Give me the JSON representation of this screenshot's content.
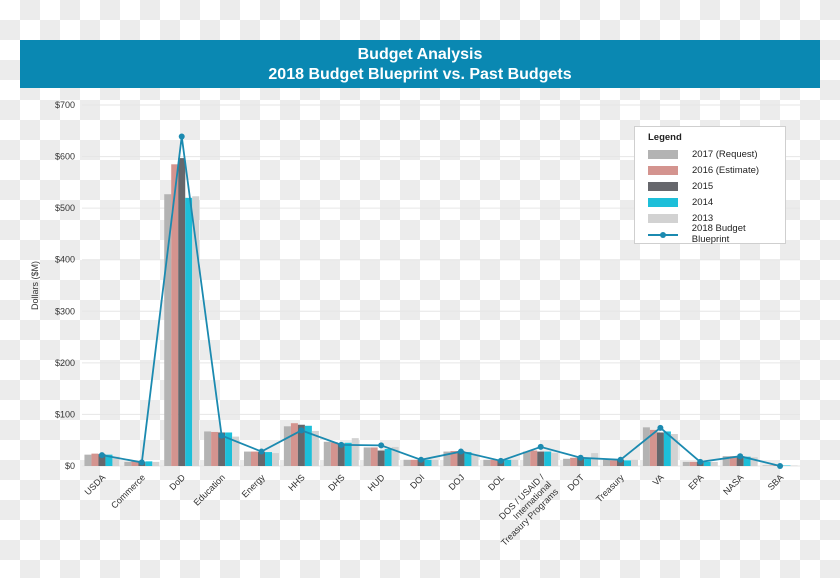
{
  "header": {
    "title_line1": "Budget Analysis",
    "title_line2": "2018 Budget Blueprint vs. Past Budgets",
    "bg_color": "#0a88b2"
  },
  "legend": {
    "title": "Legend",
    "items": [
      {
        "label": "2017 (Request)",
        "color": "#b3b3b3",
        "type": "bar"
      },
      {
        "label": "2016 (Estimate)",
        "color": "#d4948f",
        "type": "bar"
      },
      {
        "label": "2015",
        "color": "#66676c",
        "type": "bar"
      },
      {
        "label": "2014",
        "color": "#1dbfd9",
        "type": "bar"
      },
      {
        "label": "2013",
        "color": "#d2d2d2",
        "type": "bar"
      },
      {
        "label": "2018 Budget Blueprint",
        "color": "#1b8ab0",
        "type": "line"
      }
    ]
  },
  "chart_data": {
    "type": "bar",
    "title": "Budget Analysis — 2018 Budget Blueprint vs. Past Budgets",
    "xlabel": "",
    "ylabel": "Dollars ($M)",
    "ylim": [
      0,
      700
    ],
    "yticks": [
      "$0",
      "$100",
      "$200",
      "$300",
      "$400",
      "$500",
      "$600",
      "$700"
    ],
    "grid": true,
    "legend_position": "upper right",
    "categories": [
      "USDA",
      "Commerce",
      "DoD",
      "Education",
      "Energy",
      "HHS",
      "DHS",
      "HUD",
      "DOI",
      "DOJ",
      "DOL",
      "DOS / USAID / International Treasury Programs",
      "DOT",
      "Treasury",
      "VA",
      "EPA",
      "NASA",
      "SBA"
    ],
    "series": [
      {
        "name": "2017 (Request)",
        "type": "bar",
        "values": [
          22,
          8,
          527,
          67,
          28,
          77,
          47,
          36,
          12,
          28,
          12,
          28,
          14,
          12,
          75,
          8,
          19,
          1
        ]
      },
      {
        "name": "2016 (Estimate)",
        "type": "bar",
        "values": [
          24,
          9,
          585,
          66,
          28,
          83,
          46,
          36,
          12,
          29,
          12,
          30,
          16,
          11,
          70,
          8,
          19,
          1
        ]
      },
      {
        "name": "2015",
        "type": "bar",
        "values": [
          23,
          8,
          597,
          65,
          27,
          80,
          44,
          30,
          12,
          29,
          12,
          28,
          17,
          12,
          65,
          8,
          18,
          1
        ]
      },
      {
        "name": "2014",
        "type": "bar",
        "values": [
          22,
          9,
          520,
          65,
          27,
          78,
          45,
          33,
          12,
          27,
          12,
          28,
          16,
          11,
          67,
          8,
          18,
          1
        ]
      },
      {
        "name": "2013",
        "type": "bar",
        "values": [
          18,
          8,
          523,
          57,
          25,
          68,
          54,
          37,
          12,
          22,
          12,
          25,
          25,
          12,
          62,
          8,
          17,
          1
        ]
      },
      {
        "name": "2018 Budget Blueprint",
        "type": "line",
        "values": [
          21,
          7,
          639,
          59,
          28,
          69,
          41,
          40,
          12,
          28,
          10,
          37,
          16,
          12,
          74,
          8,
          19,
          0
        ]
      }
    ]
  }
}
